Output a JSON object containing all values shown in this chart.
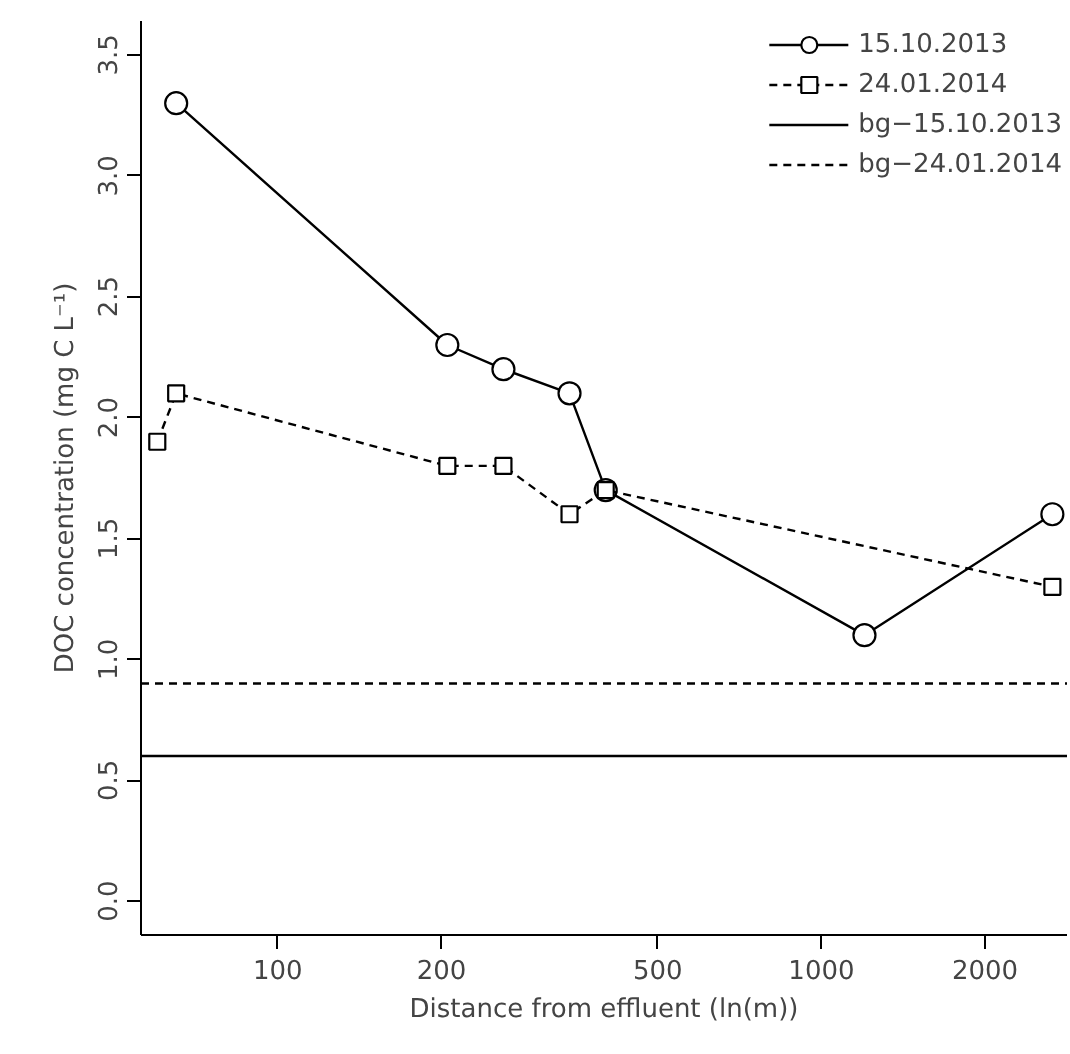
{
  "chart_data": {
    "type": "line",
    "xlabel": "Distance from effluent (ln(m))",
    "ylabel": "DOC concentration (mg C L⁻¹)",
    "log": "x",
    "xlim": [
      56,
      2830
    ],
    "xticks": [
      100,
      200,
      500,
      1000,
      2000
    ],
    "ylim": [
      -0.14,
      3.64
    ],
    "yticks": [
      {
        "value": 0,
        "label": "0.0"
      },
      0.5,
      {
        "value": 1,
        "label": "1.0"
      },
      1.5,
      {
        "value": 2,
        "label": "2.0"
      },
      2.5,
      {
        "value": 3,
        "label": "3.0"
      },
      3.5
    ],
    "legend": "top right",
    "grid": false,
    "series": [
      {
        "name": "15.10.2013",
        "color": "#000000",
        "marker": "circle",
        "line_style": "solid",
        "x": [
          65,
          205,
          260,
          344,
          401,
          1200,
          2660
        ],
        "values": [
          3.3,
          2.3,
          2.2,
          2.1,
          1.7,
          1.1,
          1.6
        ]
      },
      {
        "name": "24.01.2014",
        "color": "#000000",
        "marker": "square",
        "line_style": "dashed",
        "x": [
          60,
          65,
          205,
          260,
          344,
          401,
          2660
        ],
        "values": [
          1.9,
          2.1,
          1.8,
          1.8,
          1.6,
          1.7,
          1.3
        ]
      }
    ],
    "ref_lines": [
      {
        "axis": "y",
        "value": 0.6,
        "label": "bg−15.10.2013",
        "color": "#000000",
        "line_style": "solid"
      },
      {
        "axis": "y",
        "value": 0.9,
        "label": "bg−24.01.2014",
        "color": "#000000",
        "line_style": "dashed"
      }
    ]
  }
}
